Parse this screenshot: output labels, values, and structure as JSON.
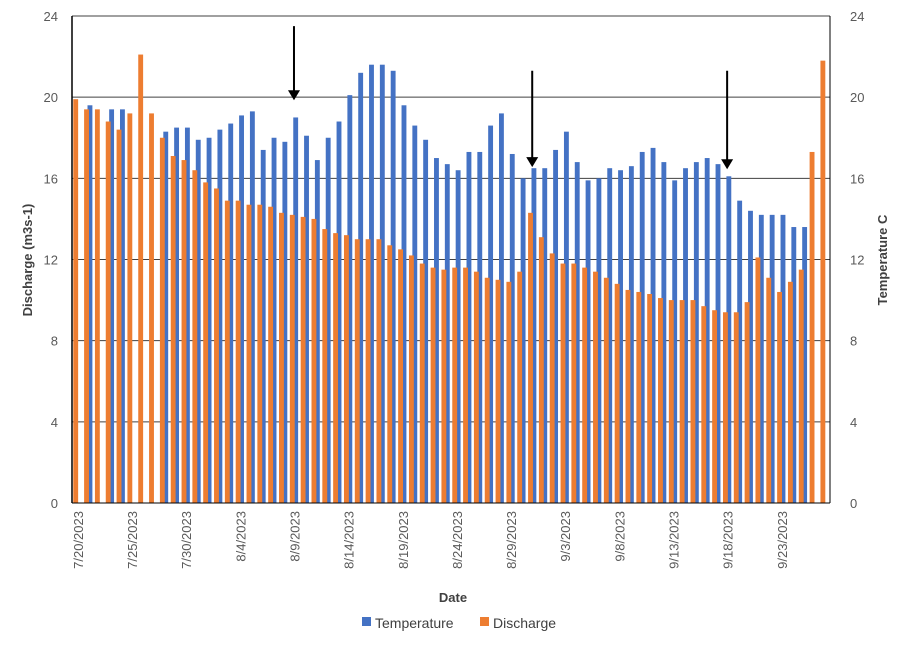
{
  "chart_data": {
    "type": "bar",
    "title": "",
    "xlabel": "Date",
    "ylabel": "Discharge (m3s-1)",
    "y2label": "Temperature C",
    "ylim": [
      0,
      24
    ],
    "y2lim": [
      0,
      24
    ],
    "yticks": [
      0,
      4,
      8,
      12,
      16,
      20,
      24
    ],
    "grid": true,
    "legend_position": "bottom",
    "start_date": "7/20/2023",
    "x_tick_labels": [
      "7/20/2023",
      "7/25/2023",
      "7/30/2023",
      "8/4/2023",
      "8/9/2023",
      "8/14/2023",
      "8/19/2023",
      "8/24/2023",
      "8/29/2023",
      "9/3/2023",
      "9/8/2023",
      "9/13/2023",
      "9/18/2023",
      "9/23/2023"
    ],
    "x_tick_every": 5,
    "series": [
      {
        "name": "Temperature",
        "axis": "secondary",
        "color": "#4472C4",
        "values": [
          null,
          19.6,
          null,
          19.4,
          19.4,
          null,
          null,
          null,
          18.3,
          18.5,
          18.5,
          17.9,
          18.0,
          18.4,
          18.7,
          19.1,
          19.3,
          17.4,
          18.0,
          17.8,
          19.0,
          18.1,
          16.9,
          18.0,
          18.8,
          20.1,
          21.2,
          21.6,
          21.6,
          21.3,
          19.6,
          18.6,
          17.9,
          17.0,
          16.7,
          16.4,
          17.3,
          17.3,
          18.6,
          19.2,
          17.2,
          16.0,
          16.5,
          16.5,
          17.4,
          18.3,
          16.8,
          15.9,
          16.0,
          16.5,
          16.4,
          16.6,
          17.3,
          17.5,
          16.8,
          15.9,
          16.5,
          16.8,
          17.0,
          16.7,
          16.1,
          14.9,
          14.4,
          14.2,
          14.2,
          14.2,
          13.6,
          13.6,
          null,
          null
        ]
      },
      {
        "name": "Discharge",
        "axis": "primary",
        "color": "#ED7D31",
        "values": [
          19.9,
          19.4,
          19.4,
          18.8,
          18.4,
          19.2,
          22.1,
          19.2,
          18.0,
          17.1,
          16.9,
          16.4,
          15.8,
          15.5,
          14.9,
          14.9,
          14.7,
          14.7,
          14.6,
          14.3,
          14.2,
          14.1,
          14.0,
          13.5,
          13.3,
          13.2,
          13.0,
          13.0,
          13.0,
          12.7,
          12.5,
          12.2,
          11.8,
          11.6,
          11.5,
          11.6,
          11.6,
          11.4,
          11.1,
          11.0,
          10.9,
          11.4,
          14.3,
          13.1,
          12.3,
          11.8,
          11.8,
          11.6,
          11.4,
          11.1,
          10.8,
          10.5,
          10.4,
          10.3,
          10.1,
          10.0,
          10.0,
          10.0,
          9.7,
          9.5,
          9.4,
          9.4,
          9.9,
          12.1,
          11.1,
          10.4,
          10.9,
          11.5,
          17.3,
          21.8
        ]
      }
    ],
    "annotations": [
      {
        "type": "arrow",
        "description": "downward arrow",
        "date_index": 20,
        "y_from": 23.5,
        "y_to": 19.9
      },
      {
        "type": "arrow",
        "description": "downward arrow",
        "date_index": 42,
        "y_from": 21.3,
        "y_to": 16.6
      },
      {
        "type": "arrow",
        "description": "downward arrow",
        "date_index": 60,
        "y_from": 21.3,
        "y_to": 16.5
      }
    ]
  }
}
